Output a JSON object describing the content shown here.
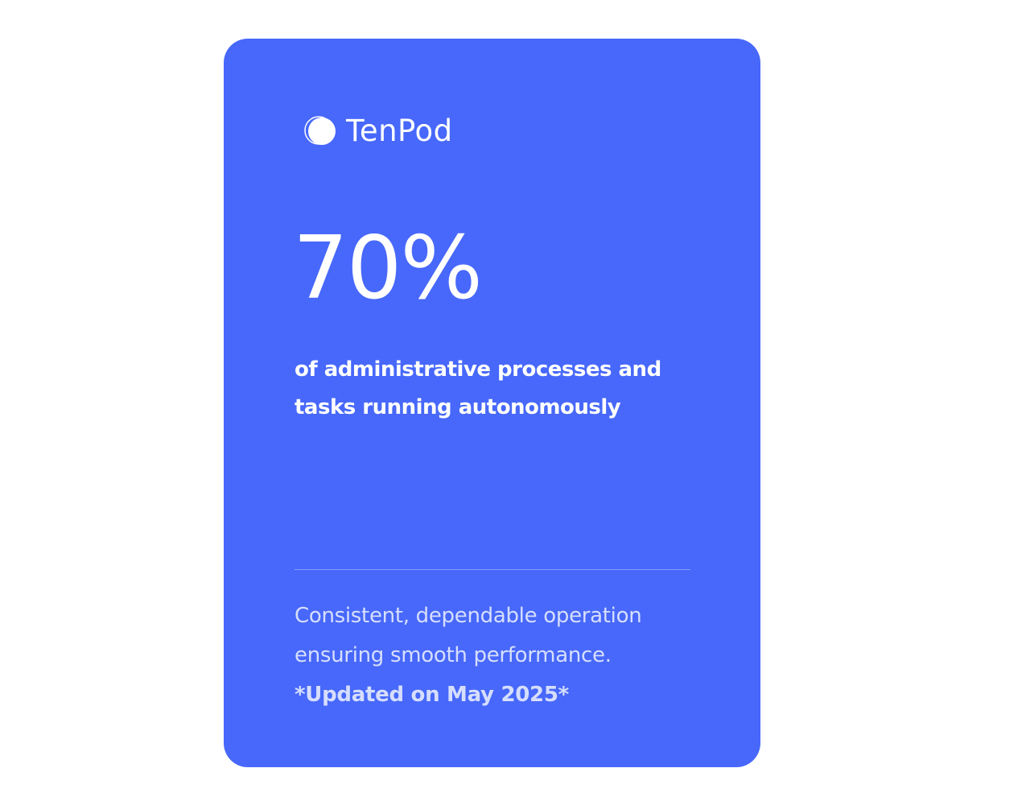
{
  "brand": {
    "name": "TenPod",
    "icon": "circle-logo-icon"
  },
  "stat": {
    "value": "70%",
    "description": "of administrative processes and tasks running autonomously"
  },
  "footer": {
    "text": "Consistent, dependable operation ensuring smooth performance.",
    "updated": "*Updated on May 2025*"
  },
  "colors": {
    "card": "#4768FA",
    "text": "#FFFFFF"
  }
}
